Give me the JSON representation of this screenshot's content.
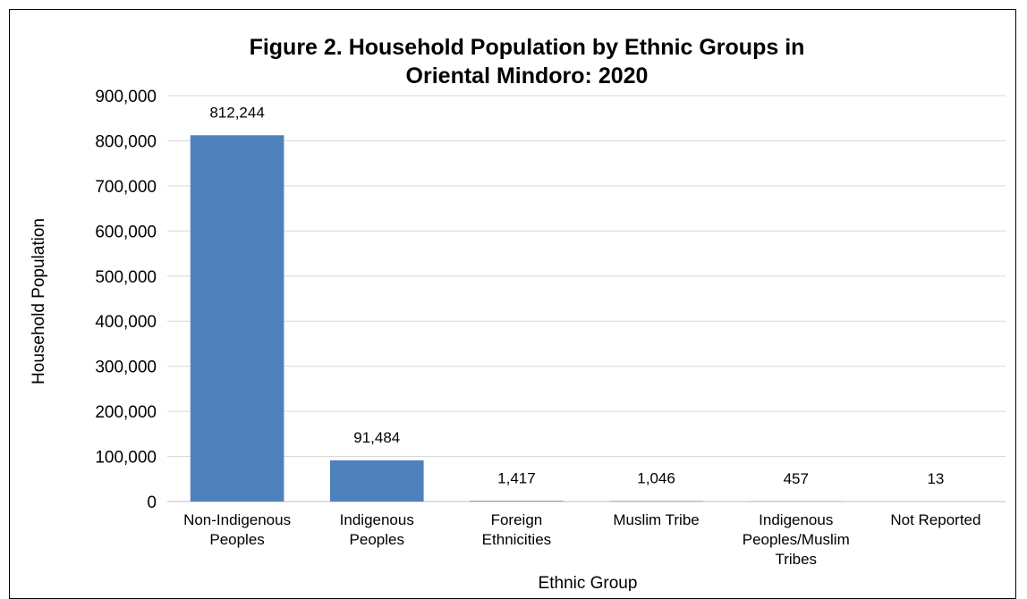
{
  "chart_data": {
    "type": "bar",
    "title": "Figure 2. Household Population by Ethnic Groups in Oriental Mindoro: 2020",
    "title_lines": [
      "Figure 2. Household Population by Ethnic Groups in",
      "Oriental Mindoro: 2020"
    ],
    "xlabel": "Ethnic Group",
    "ylabel": "Household Population",
    "categories": [
      [
        "Non-Indigenous",
        "Peoples"
      ],
      [
        "Indigenous",
        "Peoples"
      ],
      [
        "Foreign",
        "Ethnicities"
      ],
      [
        "Muslim Tribe"
      ],
      [
        "Indigenous",
        "Peoples/Muslim",
        "Tribes"
      ],
      [
        "Not Reported"
      ]
    ],
    "values": [
      812244,
      91484,
      1417,
      1046,
      457,
      13
    ],
    "data_labels": [
      "812,244",
      "91,484",
      "1,417",
      "1,046",
      "457",
      "13"
    ],
    "ylim": [
      0,
      900000
    ],
    "yticks": [
      0,
      100000,
      200000,
      300000,
      400000,
      500000,
      600000,
      700000,
      800000,
      900000
    ],
    "ytick_labels": [
      "0",
      "100,000",
      "200,000",
      "300,000",
      "400,000",
      "500,000",
      "600,000",
      "700,000",
      "800,000",
      "900,000"
    ],
    "grid": true,
    "legend": "none",
    "bar_color": "#4f81bd",
    "grid_color": "#d9d9d9"
  }
}
